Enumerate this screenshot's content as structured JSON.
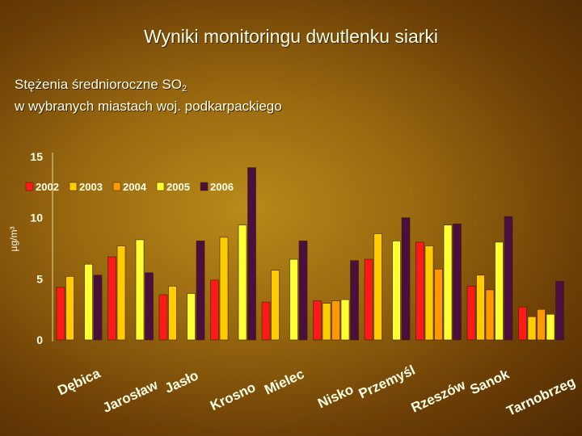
{
  "header": {
    "title": "Wyniki monitoringu dwutlenku siarki",
    "subtitle_line1_prefix": "Stężenia średnioroczne SO",
    "subtitle_subscript": "2",
    "subtitle_line2": "w wybranych miastach woj. podkarpackiego"
  },
  "chart_data": {
    "type": "bar",
    "title": "Wyniki monitoringu dwutlenku siarki",
    "ylabel": "µg/m³",
    "xlabel": "",
    "ylim": [
      0,
      15
    ],
    "yticks": [
      0,
      5,
      10,
      15
    ],
    "grid": false,
    "legend_position": "top-left",
    "categories": [
      "Dębica",
      "Jarosław",
      "Jasło",
      "Krosno",
      "Mielec",
      "Nisko",
      "Przemyśl",
      "Rzeszów",
      "Sanok",
      "Tarnobrzeg"
    ],
    "series": [
      {
        "name": "2002",
        "color": "#ff1a1a",
        "values": [
          4.3,
          6.8,
          3.7,
          4.9,
          3.1,
          3.2,
          6.6,
          8.0,
          4.4,
          2.7
        ]
      },
      {
        "name": "2003",
        "color": "#ffcc00",
        "values": [
          5.2,
          7.7,
          4.4,
          8.4,
          5.7,
          3.0,
          8.7,
          7.7,
          5.3,
          1.9
        ]
      },
      {
        "name": "2004",
        "color": "#ff9900",
        "values": [
          null,
          null,
          null,
          null,
          null,
          3.2,
          null,
          5.8,
          4.1,
          2.5
        ]
      },
      {
        "name": "2005",
        "color": "#ffff33",
        "values": [
          6.2,
          8.2,
          3.8,
          9.4,
          6.6,
          3.3,
          8.1,
          9.4,
          8.0,
          2.1
        ]
      },
      {
        "name": "2006",
        "color": "#4a0f3e",
        "values": [
          5.3,
          5.5,
          8.1,
          14.1,
          8.1,
          6.5,
          10.0,
          9.5,
          10.1,
          4.8
        ]
      }
    ]
  }
}
